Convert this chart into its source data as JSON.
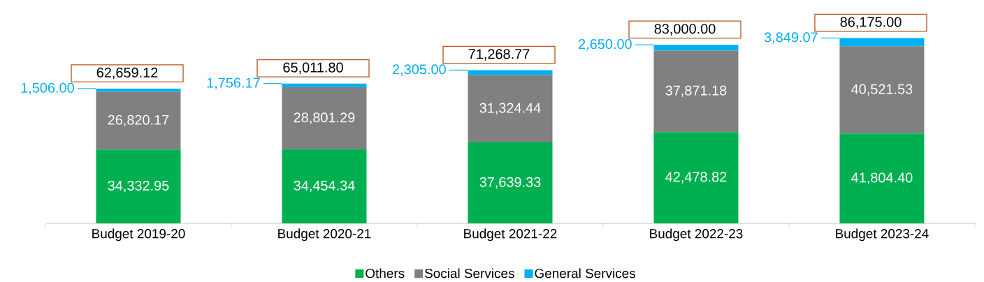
{
  "chart_data": {
    "type": "bar",
    "stacked": true,
    "legend": "bottom",
    "categories": [
      "Budget 2019-20",
      "Budget 2020-21",
      "Budget 2021-22",
      "Budget 2022-23",
      "Budget 2023-24"
    ],
    "series": [
      {
        "name": "Others",
        "color": "#00b050",
        "values": [
          34332.95,
          34454.34,
          37639.33,
          42478.82,
          41804.4
        ],
        "value_labels": [
          "34,332.95",
          "34,454.34",
          "37,639.33",
          "42,478.82",
          "41,804.40"
        ]
      },
      {
        "name": "Social Services",
        "color": "#808080",
        "values": [
          26820.17,
          28801.29,
          31324.44,
          37871.18,
          40521.53
        ],
        "value_labels": [
          "26,820.17",
          "28,801.29",
          "31,324.44",
          "37,871.18",
          "40,521.53"
        ]
      },
      {
        "name": "General Services",
        "color": "#00b0f0",
        "values": [
          1506.0,
          1756.17,
          2305.0,
          2650.0,
          3849.07
        ],
        "value_labels": [
          "1,506.00",
          "1,756.17",
          "2,305.00",
          "2,650.00",
          "3,849.07"
        ]
      }
    ],
    "totals": [
      "62,659.12",
      "65,011.80",
      "71,268.77",
      "83,000.00",
      "86,175.00"
    ]
  }
}
